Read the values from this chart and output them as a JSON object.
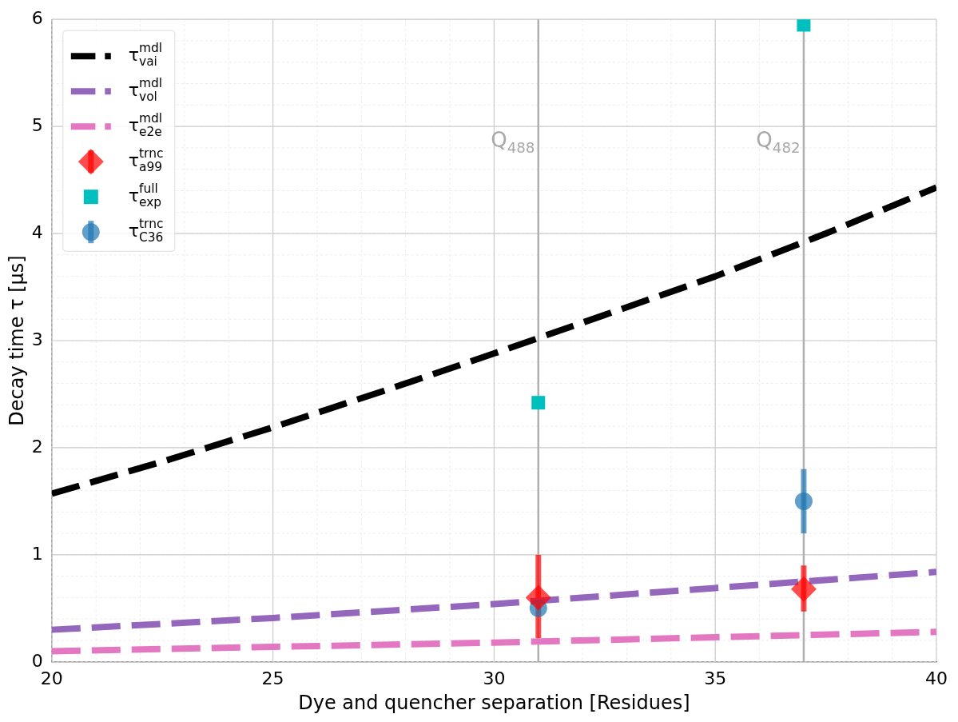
{
  "chart_data": {
    "type": "line",
    "xlabel": "Dye and quencher separation [Residues]",
    "ylabel": "Decay time τ [μs]",
    "xlim": [
      20,
      40
    ],
    "xticks": [
      20,
      25,
      30,
      35,
      40
    ],
    "ylim": [
      0,
      6
    ],
    "yticks": [
      0,
      1,
      2,
      3,
      4,
      5,
      6
    ],
    "grid": true,
    "legend": "top left",
    "series": [
      {
        "name": "τ$_{vai}$$^{mdl}$",
        "line_style": "dashed",
        "marker": "none",
        "color": "#000000",
        "x": [
          20,
          22.5,
          25,
          27.5,
          30,
          32.5,
          35,
          37.5,
          40
        ],
        "values": [
          1.57,
          1.87,
          2.19,
          2.53,
          2.88,
          3.24,
          3.6,
          4.0,
          4.43
        ]
      },
      {
        "name": "τ$_{vol}$$^{mdl}$",
        "line_style": "dashed",
        "marker": "none",
        "color": "#9467bd",
        "x": [
          20,
          25,
          30,
          35,
          40
        ],
        "values": [
          0.3,
          0.41,
          0.54,
          0.69,
          0.84
        ]
      },
      {
        "name": "τ$_{e2e}$$^{mdl}$",
        "line_style": "dashed",
        "marker": "none",
        "color": "#e377c2",
        "x": [
          20,
          25,
          30,
          35,
          40
        ],
        "values": [
          0.1,
          0.14,
          0.18,
          0.23,
          0.28
        ]
      },
      {
        "name": "τ$_{a99}$$^{trnc}$",
        "type": "scatter",
        "marker": "diamond",
        "color": "#ff0000",
        "x": [
          31,
          37
        ],
        "values": [
          0.6,
          0.68
        ],
        "errors": [
          [
            0.22,
            1.0
          ],
          [
            0.47,
            0.9
          ]
        ]
      },
      {
        "name": "τ$_{exp}$$^{full}$",
        "type": "scatter",
        "marker": "square",
        "color": "#00bfbf",
        "x": [
          31,
          37
        ],
        "values": [
          2.42,
          5.95
        ]
      },
      {
        "name": "τ$_{C36}$$^{trnc}$",
        "type": "scatter",
        "marker": "circle",
        "color": "#1f77b4",
        "x": [
          31,
          37
        ],
        "values": [
          0.5,
          1.5
        ],
        "errors": [
          null,
          [
            1.2,
            1.8
          ]
        ]
      }
    ],
    "ref_lines": [
      {
        "axis": "x",
        "value": 31,
        "label": "Q$_{488}$",
        "color": "#b0b0b0"
      },
      {
        "axis": "x",
        "value": 37,
        "label": "Q$_{482}$",
        "color": "#b0b0b0"
      }
    ]
  }
}
